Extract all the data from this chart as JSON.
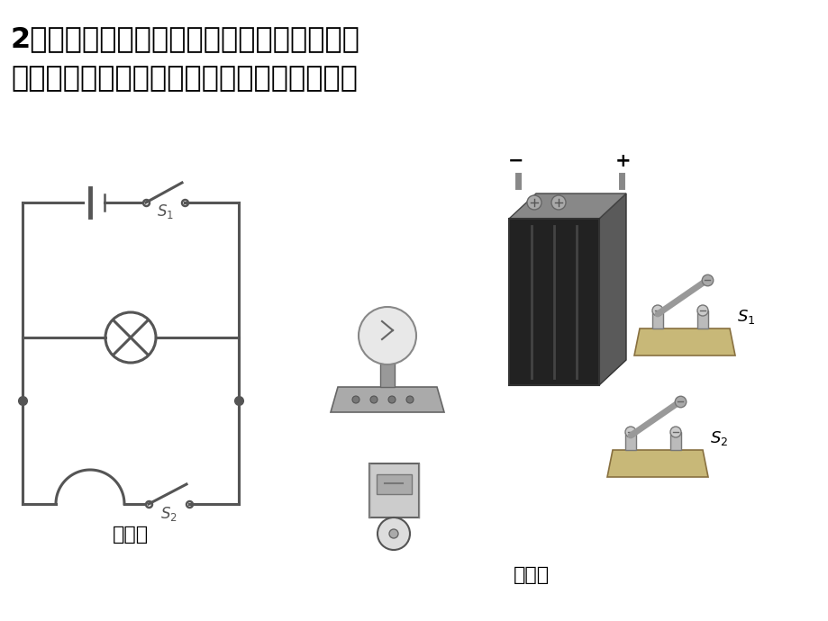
{
  "title_line1": "2、按照图（甲）所示的电路图，将图（乙）",
  "title_line2": "中各个元件连接起来（用铅笔画线表示导线）",
  "label_jia": "（甲）",
  "label_yi": "（乙）",
  "bg_color": "#ffffff",
  "circuit_color": "#555555",
  "title_color": "#000000",
  "title_fontsize": 23,
  "label_fontsize": 16,
  "circuit_lw": 2.2
}
